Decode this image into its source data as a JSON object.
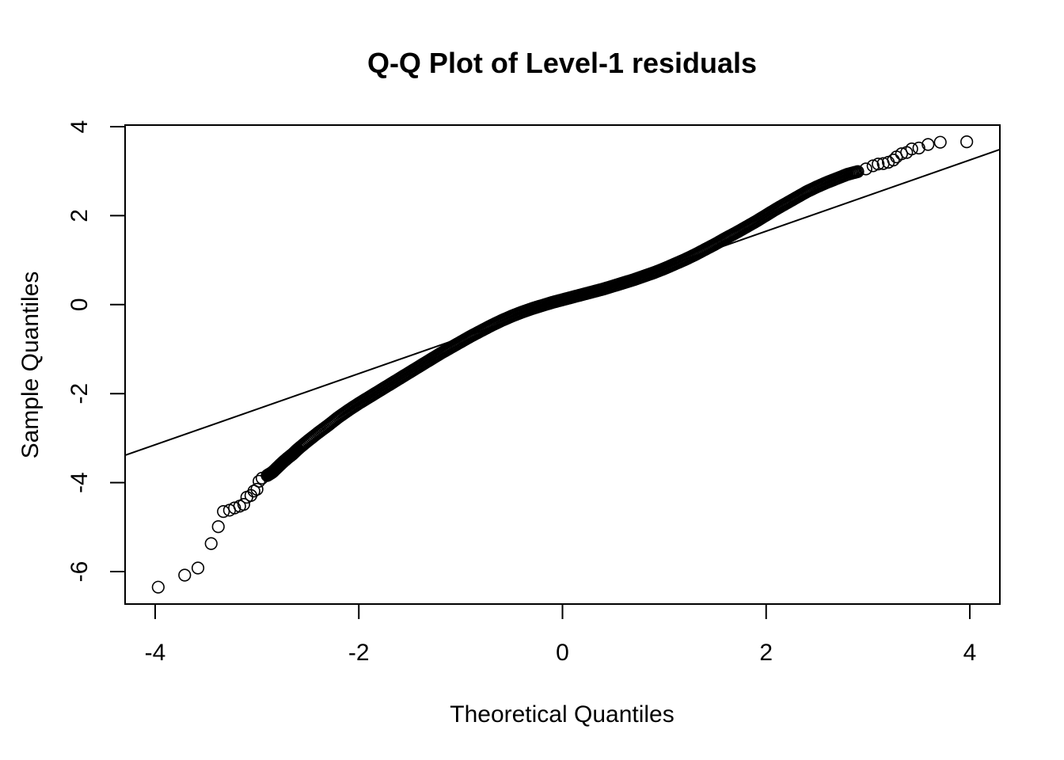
{
  "chart_data": {
    "type": "scatter",
    "title": "Q-Q Plot of Level-1 residuals",
    "xlabel": "Theoretical Quantiles",
    "ylabel": "Sample Quantiles",
    "xlim": [
      -4.3,
      4.3
    ],
    "ylim": [
      -6.75,
      4.05
    ],
    "x_ticks": [
      -4,
      -2,
      0,
      2,
      4
    ],
    "y_ticks": [
      -6,
      -4,
      -2,
      0,
      2,
      4
    ],
    "grid": false,
    "reference_line": {
      "intercept": 0.05,
      "slope": 0.8
    },
    "series": [
      {
        "points": [
          [
            -3.97,
            -6.35
          ],
          [
            -3.71,
            -6.08
          ],
          [
            -3.58,
            -5.92
          ],
          [
            -3.45,
            -5.37
          ],
          [
            -3.38,
            -4.99
          ],
          [
            -3.33,
            -4.65
          ],
          [
            -3.27,
            -4.62
          ],
          [
            -3.22,
            -4.57
          ],
          [
            -3.17,
            -4.53
          ],
          [
            -3.13,
            -4.49
          ],
          [
            -3.1,
            -4.33
          ],
          [
            -3.06,
            -4.29
          ],
          [
            -3.03,
            -4.19
          ],
          [
            -3.0,
            -4.15
          ],
          [
            -2.98,
            -3.97
          ],
          [
            -2.95,
            -3.9
          ],
          [
            -2.9,
            -3.84
          ],
          [
            -2.85,
            -3.77
          ],
          [
            -2.8,
            -3.66
          ],
          [
            -2.75,
            -3.55
          ],
          [
            -2.7,
            -3.45
          ],
          [
            -2.65,
            -3.36
          ],
          [
            -2.6,
            -3.25
          ],
          [
            -2.5,
            -3.06
          ],
          [
            -2.4,
            -2.88
          ],
          [
            -2.3,
            -2.71
          ],
          [
            -2.2,
            -2.53
          ],
          [
            -2.1,
            -2.37
          ],
          [
            -2.0,
            -2.22
          ],
          [
            -1.9,
            -2.08
          ],
          [
            -1.8,
            -1.94
          ],
          [
            -1.7,
            -1.8
          ],
          [
            -1.6,
            -1.66
          ],
          [
            -1.5,
            -1.52
          ],
          [
            -1.4,
            -1.38
          ],
          [
            -1.3,
            -1.24
          ],
          [
            -1.2,
            -1.1
          ],
          [
            -1.1,
            -0.97
          ],
          [
            -1.0,
            -0.84
          ],
          [
            -0.9,
            -0.71
          ],
          [
            -0.8,
            -0.59
          ],
          [
            -0.7,
            -0.47
          ],
          [
            -0.6,
            -0.36
          ],
          [
            -0.5,
            -0.26
          ],
          [
            -0.4,
            -0.17
          ],
          [
            -0.3,
            -0.09
          ],
          [
            -0.2,
            -0.02
          ],
          [
            -0.1,
            0.05
          ],
          [
            0.0,
            0.11
          ],
          [
            0.1,
            0.17
          ],
          [
            0.2,
            0.23
          ],
          [
            0.3,
            0.29
          ],
          [
            0.4,
            0.35
          ],
          [
            0.5,
            0.42
          ],
          [
            0.6,
            0.49
          ],
          [
            0.7,
            0.56
          ],
          [
            0.8,
            0.64
          ],
          [
            0.9,
            0.72
          ],
          [
            1.0,
            0.81
          ],
          [
            1.1,
            0.91
          ],
          [
            1.2,
            1.01
          ],
          [
            1.3,
            1.12
          ],
          [
            1.4,
            1.24
          ],
          [
            1.5,
            1.36
          ],
          [
            1.6,
            1.49
          ],
          [
            1.7,
            1.61
          ],
          [
            1.8,
            1.74
          ],
          [
            1.9,
            1.87
          ],
          [
            2.0,
            2.01
          ],
          [
            2.1,
            2.15
          ],
          [
            2.2,
            2.28
          ],
          [
            2.3,
            2.41
          ],
          [
            2.4,
            2.54
          ],
          [
            2.5,
            2.65
          ],
          [
            2.6,
            2.75
          ],
          [
            2.7,
            2.84
          ],
          [
            2.8,
            2.93
          ],
          [
            2.9,
            2.99
          ],
          [
            2.98,
            3.05
          ],
          [
            3.05,
            3.12
          ],
          [
            3.1,
            3.16
          ],
          [
            3.15,
            3.17
          ],
          [
            3.2,
            3.2
          ],
          [
            3.25,
            3.25
          ],
          [
            3.28,
            3.32
          ],
          [
            3.33,
            3.39
          ],
          [
            3.38,
            3.42
          ],
          [
            3.43,
            3.5
          ],
          [
            3.5,
            3.52
          ],
          [
            3.59,
            3.6
          ],
          [
            3.71,
            3.65
          ],
          [
            3.97,
            3.66
          ]
        ]
      }
    ]
  }
}
